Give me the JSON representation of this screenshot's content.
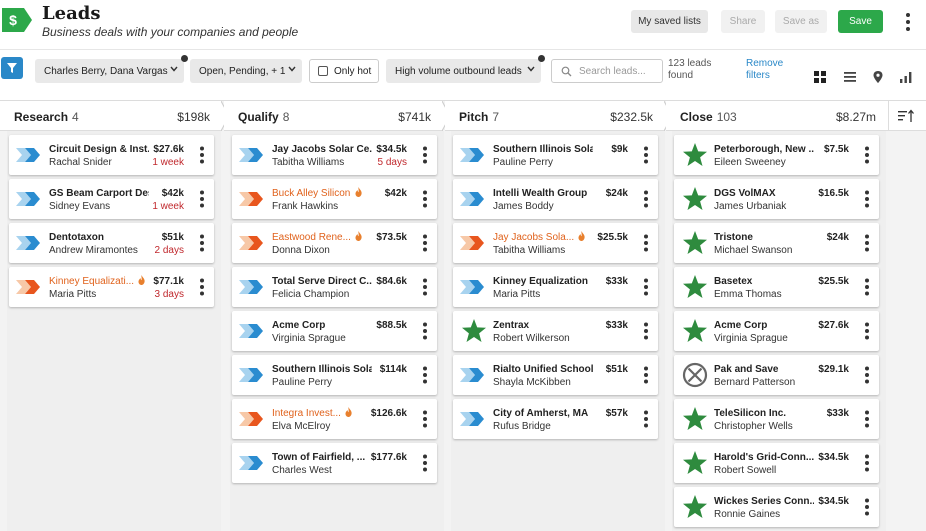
{
  "app": {
    "title": "Leads",
    "subtitle": "Business deals with your companies and people",
    "logo": "dollar-tag-icon",
    "accent": "#2ca84a",
    "header_buttons": {
      "saved_lists": "My saved lists",
      "share": "Share",
      "save_as": "Save as",
      "save": "Save"
    }
  },
  "filters": {
    "people": "Charles Berry, Dana Vargas",
    "status": "Open, Pending, + 1",
    "only_hot": "Only hot",
    "volume": "High volume outbound leads",
    "search_placeholder": "Search leads...",
    "found_line1": "123 leads",
    "found_line2": "found",
    "remove_line1": "Remove",
    "remove_line2": "filters",
    "views": [
      "grid-icon",
      "list-icon",
      "map-pin-icon",
      "bar-chart-icon"
    ]
  },
  "columns": [
    {
      "name": "Research",
      "count": "4",
      "total": "$198k",
      "cards": [
        {
          "name": "Circuit Design & Inst...",
          "amount": "$27.6k",
          "person": "Rachal Snider",
          "due": "1 week",
          "icon": "arrow-blue",
          "hot": false
        },
        {
          "name": "GS Beam Carport Desi...",
          "amount": "$42k",
          "person": "Sidney Evans",
          "due": "1 week",
          "icon": "arrow-blue",
          "hot": false
        },
        {
          "name": "Dentotaxon",
          "amount": "$51k",
          "person": "Andrew Miramontes",
          "due": "2 days",
          "icon": "arrow-blue",
          "hot": false
        },
        {
          "name": "Kinney Equalizati...",
          "amount": "$77.1k",
          "person": "Maria Pitts",
          "due": "3 days",
          "icon": "arrow-orange",
          "hot": true
        }
      ]
    },
    {
      "name": "Qualify",
      "count": "8",
      "total": "$741k",
      "cards": [
        {
          "name": "Jay Jacobs Solar Ce...",
          "amount": "$34.5k",
          "person": "Tabitha Williams",
          "due": "5 days",
          "icon": "arrow-blue",
          "hot": false
        },
        {
          "name": "Buck Alley Silicon",
          "amount": "$42k",
          "person": "Frank Hawkins",
          "due": "",
          "icon": "arrow-orange",
          "hot": true
        },
        {
          "name": "Eastwood Rene...",
          "amount": "$73.5k",
          "person": "Donna Dixon",
          "due": "",
          "icon": "arrow-orange",
          "hot": true
        },
        {
          "name": "Total Serve Direct C...",
          "amount": "$84.6k",
          "person": "Felicia Champion",
          "due": "",
          "icon": "arrow-blue",
          "hot": false
        },
        {
          "name": "Acme Corp",
          "amount": "$88.5k",
          "person": "Virginia Sprague",
          "due": "",
          "icon": "arrow-blue",
          "hot": false
        },
        {
          "name": "Southern Illinois Solar",
          "amount": "$114k",
          "person": "Pauline Perry",
          "due": "",
          "icon": "arrow-blue",
          "hot": false
        },
        {
          "name": "Integra Invest...",
          "amount": "$126.6k",
          "person": "Elva McElroy",
          "due": "",
          "icon": "arrow-orange",
          "hot": true
        },
        {
          "name": "Town of Fairfield, ...",
          "amount": "$177.6k",
          "person": "Charles West",
          "due": "",
          "icon": "arrow-blue",
          "hot": false
        }
      ]
    },
    {
      "name": "Pitch",
      "count": "7",
      "total": "$232.5k",
      "cards": [
        {
          "name": "Southern Illinois Solar",
          "amount": "$9k",
          "person": "Pauline Perry",
          "due": "",
          "icon": "arrow-blue",
          "hot": false
        },
        {
          "name": "Intelli Wealth Group",
          "amount": "$24k",
          "person": "James Boddy",
          "due": "",
          "icon": "arrow-blue",
          "hot": false
        },
        {
          "name": "Jay Jacobs Sola...",
          "amount": "$25.5k",
          "person": "Tabitha Williams",
          "due": "",
          "icon": "arrow-orange",
          "hot": true
        },
        {
          "name": "Kinney Equalization",
          "amount": "$33k",
          "person": "Maria Pitts",
          "due": "",
          "icon": "arrow-blue",
          "hot": false
        },
        {
          "name": "Zentrax",
          "amount": "$33k",
          "person": "Robert Wilkerson",
          "due": "",
          "icon": "star",
          "hot": false
        },
        {
          "name": "Rialto Unified School ...",
          "amount": "$51k",
          "person": "Shayla McKibben",
          "due": "",
          "icon": "arrow-blue",
          "hot": false
        },
        {
          "name": "City of Amherst, MA",
          "amount": "$57k",
          "person": "Rufus Bridge",
          "due": "",
          "icon": "arrow-blue",
          "hot": false
        }
      ]
    },
    {
      "name": "Close",
      "count": "103",
      "total": "$8.27m",
      "cards": [
        {
          "name": "Peterborough, New ...",
          "amount": "$7.5k",
          "person": "Eileen Sweeney",
          "due": "",
          "icon": "star",
          "hot": false
        },
        {
          "name": "DGS VolMAX",
          "amount": "$16.5k",
          "person": "James Urbaniak",
          "due": "",
          "icon": "star",
          "hot": false
        },
        {
          "name": "Tristone",
          "amount": "$24k",
          "person": "Michael Swanson",
          "due": "",
          "icon": "star",
          "hot": false
        },
        {
          "name": "Basetex",
          "amount": "$25.5k",
          "person": "Emma Thomas",
          "due": "",
          "icon": "star",
          "hot": false
        },
        {
          "name": "Acme Corp",
          "amount": "$27.6k",
          "person": "Virginia Sprague",
          "due": "",
          "icon": "star",
          "hot": false
        },
        {
          "name": "Pak and Save",
          "amount": "$29.1k",
          "person": "Bernard Patterson",
          "due": "",
          "icon": "lost",
          "hot": false
        },
        {
          "name": "TeleSilicon Inc.",
          "amount": "$33k",
          "person": "Christopher Wells",
          "due": "",
          "icon": "star",
          "hot": false
        },
        {
          "name": "Harold's Grid-Conn...",
          "amount": "$34.5k",
          "person": "Robert Sowell",
          "due": "",
          "icon": "star",
          "hot": false
        },
        {
          "name": "Wickes Series Conn...",
          "amount": "$34.5k",
          "person": "Ronnie Gaines",
          "due": "",
          "icon": "star",
          "hot": false
        }
      ]
    }
  ]
}
